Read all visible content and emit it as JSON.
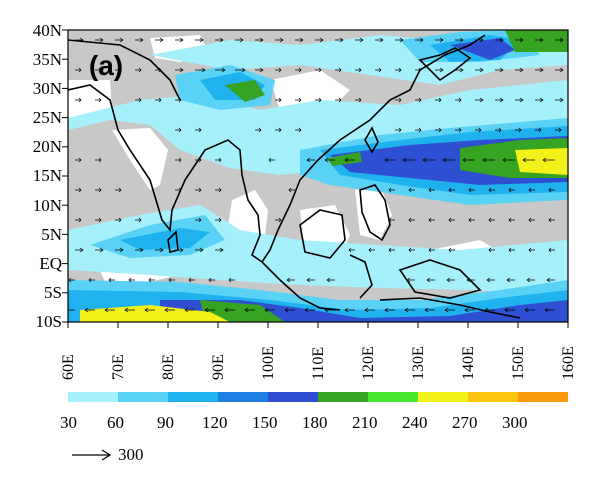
{
  "panel_label": "(a)",
  "lat_labels": [
    "40N",
    "35N",
    "30N",
    "25N",
    "20N",
    "15N",
    "10N",
    "5N",
    "EQ",
    "5S",
    "10S"
  ],
  "lon_labels": [
    "60E",
    "70E",
    "80E",
    "90E",
    "100E",
    "110E",
    "120E",
    "130E",
    "140E",
    "150E",
    "160E"
  ],
  "colorbar": {
    "labels": [
      "30",
      "60",
      "90",
      "120",
      "150",
      "180",
      "210",
      "240",
      "270",
      "300"
    ],
    "colors": [
      "#c8c8c8",
      "#a6f0fb",
      "#5ad2f5",
      "#1fb2ee",
      "#1c80e2",
      "#2f4fd2",
      "#37a322",
      "#44e82c",
      "#f2f21a",
      "#fbc512",
      "#fb9a0c"
    ]
  },
  "reference_vector": {
    "label": "300"
  },
  "colors": {
    "land": "#ffffff",
    "ocean_shading": "#c8c8c8",
    "coastline": "#000000"
  }
}
